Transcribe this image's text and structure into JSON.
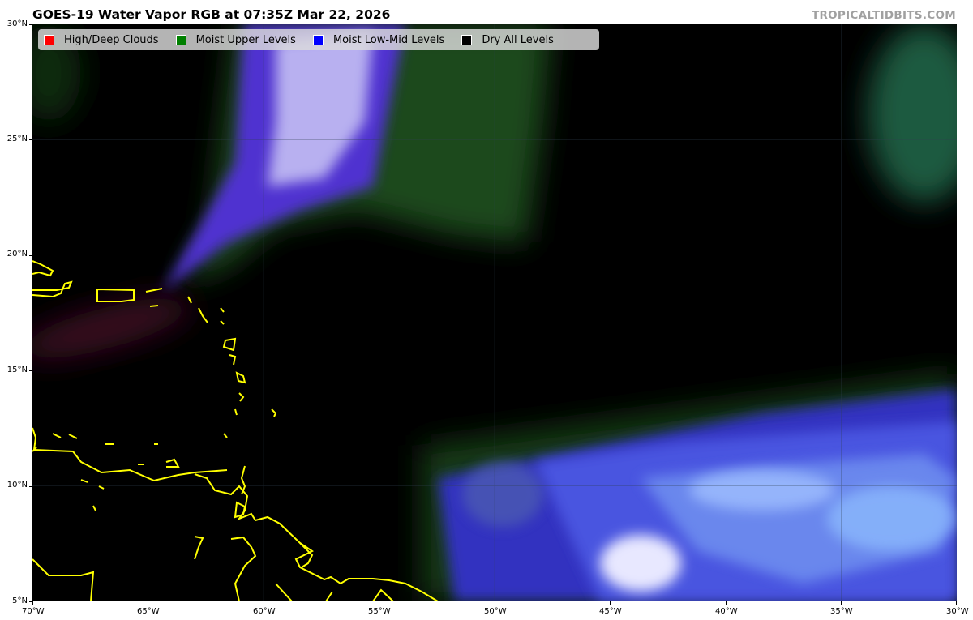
{
  "header": {
    "title": "GOES-19 Water Vapor RGB at 07:35Z Mar 22, 2026",
    "brand": "TROPICALTIDBITS.COM"
  },
  "legend": {
    "items": [
      {
        "label": "High/Deep Clouds",
        "color": "#ff0000"
      },
      {
        "label": "Moist Upper Levels",
        "color": "#008000"
      },
      {
        "label": "Moist Low-Mid Levels",
        "color": "#0000ff"
      },
      {
        "label": "Dry All Levels",
        "color": "#000000"
      }
    ]
  },
  "map": {
    "lon_range": [
      -70,
      -30
    ],
    "lat_range": [
      5,
      30
    ],
    "coastline_color": "#ffff00",
    "background": "#000000"
  },
  "axes": {
    "lat_ticks": [
      "30°N",
      "25°N",
      "20°N",
      "15°N",
      "10°N",
      "5°N"
    ],
    "lon_ticks": [
      "70°W",
      "65°W",
      "60°W",
      "55°W",
      "50°W",
      "45°W",
      "40°W",
      "35°W",
      "30°W"
    ]
  }
}
